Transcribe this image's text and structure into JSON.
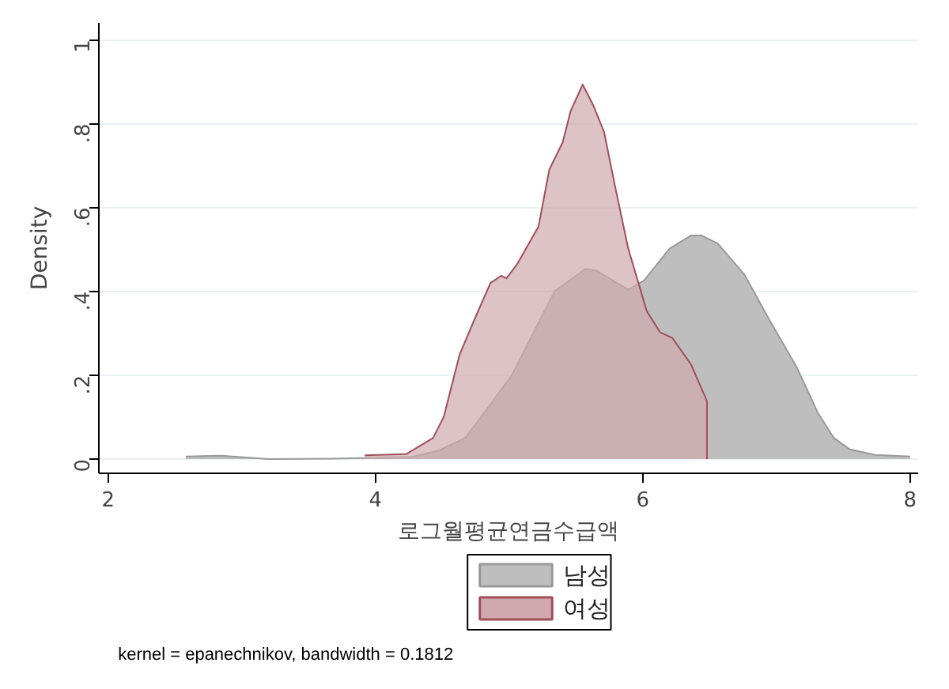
{
  "chart_data": {
    "type": "area",
    "xlabel": "로그월평균연금수급액",
    "ylabel": "Density",
    "xlim": [
      1.93,
      8.06
    ],
    "ylim": [
      -0.034,
      1.04
    ],
    "xticks": [
      2,
      4,
      6,
      8
    ],
    "yticks": [
      {
        "value": 0,
        "label": "0"
      },
      {
        "value": 0.2,
        "label": ".2"
      },
      {
        "value": 0.4,
        "label": ".4"
      },
      {
        "value": 0.6,
        "label": ".6"
      },
      {
        "value": 0.8,
        "label": ".8"
      },
      {
        "value": 1,
        "label": "1"
      }
    ],
    "grid": "y",
    "legend": "bottom",
    "annotations": [
      "kernel = epanechnikov, bandwidth = 0.1812"
    ],
    "series": [
      {
        "name": "남성",
        "color": "#bebebe",
        "x": [
          2.58,
          2.85,
          3.2,
          3.68,
          4.27,
          4.47,
          4.67,
          4.82,
          5.02,
          5.18,
          5.34,
          5.57,
          5.65,
          5.89,
          6.01,
          6.2,
          6.36,
          6.44,
          6.56,
          6.76,
          6.95,
          7.15,
          7.31,
          7.43,
          7.55,
          7.74,
          8.0
        ],
        "values": [
          0.006,
          0.008,
          0,
          0.001,
          0.005,
          0.02,
          0.05,
          0.113,
          0.2,
          0.3,
          0.4,
          0.453,
          0.45,
          0.404,
          0.426,
          0.502,
          0.533,
          0.533,
          0.514,
          0.44,
          0.33,
          0.22,
          0.11,
          0.05,
          0.023,
          0.01,
          0.006
        ]
      },
      {
        "name": "여성",
        "color": "#cfa9ad",
        "x": [
          3.92,
          4.23,
          4.43,
          4.51,
          4.63,
          4.75,
          4.86,
          4.94,
          4.98,
          5.06,
          5.22,
          5.3,
          5.4,
          5.46,
          5.55,
          5.63,
          5.71,
          5.79,
          5.89,
          6.03,
          6.13,
          6.22,
          6.36,
          6.48,
          6.48
        ],
        "values": [
          0.009,
          0.012,
          0.05,
          0.1,
          0.25,
          0.34,
          0.42,
          0.437,
          0.431,
          0.465,
          0.555,
          0.69,
          0.755,
          0.83,
          0.893,
          0.843,
          0.78,
          0.654,
          0.503,
          0.352,
          0.302,
          0.289,
          0.226,
          0.138,
          0
        ]
      }
    ]
  }
}
